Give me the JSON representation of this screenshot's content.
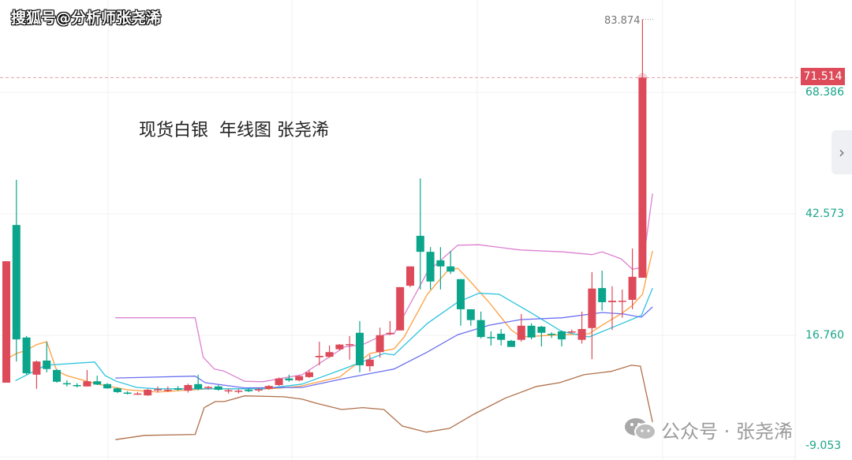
{
  "header": {
    "watermark_top": "搜狐号@分析师张尧浠"
  },
  "watermark_bottom": "公众号 · 张尧浠",
  "chart_data": {
    "type": "candlestick",
    "title": "现货白银  年线图 张尧浠",
    "y_ticks": [
      "68.386",
      "42.573",
      "16.760",
      "-9.053"
    ],
    "ylim": [
      -9.053,
      87.0
    ],
    "last_price": "71.514",
    "high_label": "83.874",
    "colors": {
      "up": "#dd4b5a",
      "down": "#0aa58a",
      "ma_orange": "#ff9f3f",
      "ma_cyan": "#2cc3df",
      "ma_blue": "#6b70f0",
      "band_upper": "#dd80cf",
      "band_lower": "#b0704a"
    },
    "candles_ohlc": [
      [
        6.7,
        32.5,
        6.7,
        32.5
      ],
      [
        40.2,
        49.8,
        11.2,
        15.9
      ],
      [
        16.3,
        16.6,
        8.4,
        8.7
      ],
      [
        8.4,
        11.4,
        5.4,
        11.2
      ],
      [
        11.4,
        15.4,
        8.9,
        9.6
      ],
      [
        9.4,
        9.6,
        6.7,
        6.9
      ],
      [
        6.6,
        7.2,
        5.9,
        6.5
      ],
      [
        6.2,
        6.6,
        5.7,
        6.1
      ],
      [
        5.9,
        9.4,
        5.9,
        7.0
      ],
      [
        7.0,
        8.2,
        6.2,
        6.3
      ],
      [
        6.4,
        6.6,
        5.4,
        5.5
      ],
      [
        5.5,
        5.7,
        4.5,
        4.7
      ],
      [
        4.6,
        4.9,
        4.2,
        4.5
      ],
      [
        4.4,
        4.7,
        4.1,
        4.4
      ],
      [
        4.0,
        5.4,
        3.9,
        5.2
      ],
      [
        5.2,
        5.9,
        4.6,
        5.3
      ],
      [
        5.2,
        5.9,
        4.7,
        5.2
      ],
      [
        5.5,
        6.0,
        5.0,
        5.2
      ],
      [
        5.0,
        6.5,
        4.6,
        6.2
      ],
      [
        6.4,
        8.4,
        5.1,
        5.4
      ],
      [
        5.7,
        6.0,
        5.2,
        5.8
      ],
      [
        5.9,
        6.2,
        5.0,
        5.2
      ],
      [
        5.0,
        5.4,
        4.4,
        5.1
      ],
      [
        4.9,
        5.3,
        4.4,
        5.0
      ],
      [
        5.2,
        5.5,
        4.7,
        4.9
      ],
      [
        5.2,
        5.6,
        4.7,
        5.3
      ],
      [
        5.4,
        6.2,
        5.2,
        6.0
      ],
      [
        6.2,
        7.8,
        6.0,
        7.6
      ],
      [
        7.6,
        8.4,
        6.9,
        7.2
      ],
      [
        7.2,
        8.3,
        7.0,
        8.1
      ],
      [
        7.9,
        9.4,
        7.7,
        8.9
      ],
      [
        12.1,
        15.4,
        10.4,
        12.4
      ],
      [
        12.2,
        14.6,
        12.0,
        13.2
      ],
      [
        13.8,
        14.9,
        13.6,
        14.8
      ],
      [
        14.8,
        16.6,
        11.6,
        14.9
      ],
      [
        17.3,
        19.8,
        8.9,
        10.4
      ],
      [
        10.2,
        12.6,
        9.1,
        11.6
      ],
      [
        13.2,
        18.4,
        12.0,
        16.8
      ],
      [
        17.1,
        19.8,
        16.8,
        17.3
      ],
      [
        17.8,
        27.0,
        17.8,
        27.0
      ],
      [
        27.3,
        31.4,
        27.0,
        31.4
      ],
      [
        37.9,
        50.1,
        26.5,
        34.5
      ],
      [
        34.5,
        35.5,
        26.5,
        28.2
      ],
      [
        32.7,
        35.5,
        26.5,
        31.4
      ],
      [
        31.4,
        34.7,
        29.8,
        30.3
      ],
      [
        28.7,
        28.7,
        18.8,
        22.3
      ],
      [
        22.3,
        22.3,
        18.8,
        20.0
      ],
      [
        20.0,
        21.8,
        16.1,
        16.4
      ],
      [
        16.4,
        17.6,
        14.6,
        16.3
      ],
      [
        17.1,
        18.1,
        14.6,
        15.8
      ],
      [
        15.6,
        15.8,
        14.3,
        14.3
      ],
      [
        15.8,
        21.3,
        15.4,
        18.8
      ],
      [
        18.8,
        19.3,
        15.9,
        16.3
      ],
      [
        18.6,
        18.8,
        14.4,
        17.3
      ],
      [
        17.1,
        17.4,
        16.2,
        17.0
      ],
      [
        17.6,
        17.8,
        14.4,
        15.9
      ],
      [
        17.4,
        18.0,
        17.2,
        17.6
      ],
      [
        15.8,
        21.8,
        15.0,
        18.1
      ],
      [
        18.3,
        30.2,
        11.7,
        26.7
      ],
      [
        26.8,
        30.5,
        22.0,
        23.8
      ],
      [
        23.8,
        27.2,
        17.9,
        24.1
      ],
      [
        24.1,
        26.5,
        20.5,
        24.1
      ],
      [
        24.3,
        35.2,
        22.3,
        29.2
      ],
      [
        29.0,
        83.874,
        29.0,
        71.514
      ]
    ],
    "lines": [
      {
        "key": "ma_orange",
        "points": [
          [
            0,
            11.7
          ],
          [
            1,
            12.9
          ],
          [
            2,
            13.6
          ],
          [
            3,
            14.8
          ],
          [
            4,
            15.4
          ],
          [
            5,
            9.2
          ],
          [
            6,
            8.2
          ],
          [
            9,
            6.4
          ],
          [
            12,
            5.2
          ],
          [
            15,
            4.7
          ],
          [
            20,
            5.4
          ],
          [
            26,
            5.4
          ],
          [
            29,
            5.9
          ],
          [
            31,
            6.9
          ],
          [
            33,
            7.9
          ],
          [
            36,
            12.9
          ],
          [
            38.4,
            13.9
          ],
          [
            39.4,
            16.4
          ],
          [
            41.7,
            25.5
          ],
          [
            43.7,
            30.5
          ],
          [
            44.7,
            31.0
          ],
          [
            45.7,
            28.8
          ],
          [
            47.8,
            23.8
          ],
          [
            50,
            17.9
          ],
          [
            51,
            16.4
          ],
          [
            54,
            16.8
          ],
          [
            57.7,
            17.1
          ],
          [
            59,
            18.9
          ],
          [
            61,
            21.5
          ],
          [
            62,
            23.1
          ],
          [
            63,
            25.5
          ],
          [
            64,
            34.7
          ]
        ]
      },
      {
        "key": "ma_cyan",
        "points": [
          [
            0.9,
            7.1
          ],
          [
            3.9,
            10.4
          ],
          [
            8.75,
            11.1
          ],
          [
            9.8,
            8.2
          ],
          [
            10.9,
            7.0
          ],
          [
            12.9,
            5.7
          ],
          [
            15,
            5.4
          ],
          [
            25.4,
            5.4
          ],
          [
            29.3,
            6.4
          ],
          [
            33.5,
            9.7
          ],
          [
            37.4,
            12.9
          ],
          [
            38.4,
            12.6
          ],
          [
            41.7,
            19.3
          ],
          [
            44.7,
            23.8
          ],
          [
            46.8,
            25.7
          ],
          [
            48.8,
            25.5
          ],
          [
            52,
            21.5
          ],
          [
            55,
            17.6
          ],
          [
            57.7,
            16.4
          ],
          [
            61,
            19.3
          ],
          [
            62.9,
            21.0
          ],
          [
            64,
            26.8
          ]
        ]
      },
      {
        "key": "ma_blue",
        "points": [
          [
            10.8,
            7.7
          ],
          [
            18.7,
            8.1
          ],
          [
            19.7,
            6.7
          ],
          [
            23.6,
            5.6
          ],
          [
            29.3,
            5.7
          ],
          [
            33.5,
            7.6
          ],
          [
            37.4,
            9.2
          ],
          [
            38.4,
            9.6
          ],
          [
            41.6,
            13.1
          ],
          [
            44.7,
            16.9
          ],
          [
            47.8,
            18.9
          ],
          [
            50.9,
            20.1
          ],
          [
            55.1,
            20.5
          ],
          [
            59,
            21.6
          ],
          [
            61.1,
            21.3
          ],
          [
            62.9,
            20.6
          ],
          [
            64,
            22.8
          ]
        ]
      },
      {
        "key": "band_upper",
        "points": [
          [
            10.8,
            20.5
          ],
          [
            18.7,
            20.5
          ],
          [
            19.5,
            12.1
          ],
          [
            20.6,
            9.6
          ],
          [
            21.5,
            9.2
          ],
          [
            23.6,
            7.0
          ],
          [
            25.4,
            6.9
          ],
          [
            29.3,
            8.4
          ],
          [
            33.5,
            14.3
          ],
          [
            35.3,
            14.8
          ],
          [
            37.4,
            16.9
          ],
          [
            38.4,
            17.1
          ],
          [
            41.7,
            30.2
          ],
          [
            44.7,
            35.9
          ],
          [
            46.8,
            36.0
          ],
          [
            50.9,
            34.9
          ],
          [
            55.1,
            34.5
          ],
          [
            58,
            33.9
          ],
          [
            59,
            34.5
          ],
          [
            60.9,
            33.0
          ],
          [
            62,
            30.8
          ],
          [
            63,
            31.2
          ],
          [
            64,
            46.9
          ]
        ]
      },
      {
        "key": "band_lower",
        "points": [
          [
            10.8,
            -5.4
          ],
          [
            13.7,
            -4.5
          ],
          [
            18.7,
            -4.3
          ],
          [
            19.6,
            1.4
          ],
          [
            20.7,
            2.7
          ],
          [
            21.6,
            2.7
          ],
          [
            23.6,
            3.9
          ],
          [
            27.5,
            3.7
          ],
          [
            29.3,
            3.2
          ],
          [
            30.6,
            2.4
          ],
          [
            33.2,
            1.0
          ],
          [
            35.3,
            1.4
          ],
          [
            37.4,
            1.0
          ],
          [
            39.2,
            -2.5
          ],
          [
            41.6,
            -3.8
          ],
          [
            43.9,
            -3.0
          ],
          [
            46.3,
            0.0
          ],
          [
            49.4,
            3.4
          ],
          [
            52.5,
            5.9
          ],
          [
            54.8,
            6.7
          ],
          [
            57.2,
            8.4
          ],
          [
            59.9,
            9.1
          ],
          [
            61.9,
            10.4
          ],
          [
            62.8,
            10.2
          ],
          [
            64,
            -1.7
          ]
        ]
      }
    ]
  }
}
